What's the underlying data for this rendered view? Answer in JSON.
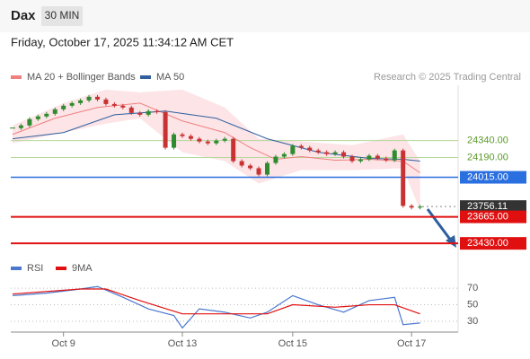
{
  "header": {
    "title": "Dax",
    "timeframe": "30 MIN",
    "timestamp": "Friday, October 17, 2025 11:34:12 AM CET"
  },
  "chart_data": {
    "type": "candlestick",
    "legend": [
      {
        "name": "MA 20 + Bollinger Bands",
        "color": "#f08080"
      },
      {
        "name": "MA 50",
        "color": "#2f5f9e"
      }
    ],
    "credit": "Research © 2025 Trading Central",
    "ylim": [
      23320,
      24830
    ],
    "closes": [
      24451,
      24474,
      24530,
      24554,
      24577,
      24617,
      24649,
      24672,
      24696,
      24728,
      24704,
      24664,
      24649,
      24633,
      24585,
      24569,
      24601,
      24593,
      24277,
      24395,
      24380,
      24356,
      24332,
      24316,
      24340,
      24356,
      24158,
      24119,
      24095,
      24039,
      24142,
      24198,
      24221,
      24293,
      24277,
      24253,
      24237,
      24221,
      24237,
      24198,
      24158,
      24174,
      24206,
      24182,
      24166,
      24253,
      23762,
      23747,
      23756
    ],
    "ma20": {
      "x": [
        0,
        5,
        10,
        15,
        20,
        25,
        28,
        31,
        34,
        38,
        42,
        46,
        48
      ],
      "values": [
        24395,
        24538,
        24633,
        24672,
        24514,
        24411,
        24277,
        24174,
        24198,
        24166,
        24174,
        24158,
        24055
      ]
    },
    "ma50": {
      "x": [
        0,
        6,
        12,
        18,
        24,
        30,
        36,
        42,
        46,
        48
      ],
      "values": [
        24356,
        24411,
        24569,
        24601,
        24538,
        24356,
        24237,
        24182,
        24174,
        24158
      ]
    },
    "bands": {
      "x": [
        0,
        6,
        11,
        15,
        20,
        25,
        29,
        34,
        40,
        46,
        48
      ],
      "upper": [
        24474,
        24672,
        24791,
        24767,
        24791,
        24633,
        24356,
        24332,
        24300,
        24395,
        24158
      ],
      "lower": [
        24316,
        24411,
        24490,
        24538,
        24237,
        24158,
        23960,
        24079,
        24079,
        24095,
        23723
      ]
    },
    "levels": [
      {
        "value": 24340,
        "label": "24340.00",
        "color": "#b5d89a",
        "style": "plain"
      },
      {
        "value": 24190,
        "label": "24190.00",
        "color": "#b5d89a",
        "style": "plain"
      },
      {
        "value": 24015,
        "label": "24015.00",
        "color": "#2a6fe0",
        "style": "box"
      },
      {
        "value": 23756.11,
        "label": "23756.11",
        "color": "#333333",
        "style": "current"
      },
      {
        "value": 23665,
        "label": "23665.00",
        "color": "#e01010",
        "style": "box"
      },
      {
        "value": 23430,
        "label": "23430.00",
        "color": "#e01010",
        "style": "box"
      }
    ],
    "xticks": [
      {
        "value": 6,
        "label": "Oct 9"
      },
      {
        "value": 20,
        "label": "Oct 13"
      },
      {
        "value": 33,
        "label": "Oct 15"
      },
      {
        "value": 47,
        "label": "Oct 17"
      }
    ],
    "rsi": {
      "legend": [
        {
          "name": "RSI",
          "color": "#4a78d0"
        },
        {
          "name": "9MA",
          "color": "#e01010"
        }
      ],
      "ylim": [
        17,
        82
      ],
      "yticks": [
        70,
        50,
        30
      ],
      "x": [
        0,
        4,
        8,
        10,
        13,
        16,
        19,
        20,
        22,
        25,
        28,
        30,
        33,
        36,
        39,
        42,
        45,
        46,
        48
      ],
      "values": [
        61,
        64,
        69,
        72,
        59,
        45,
        37,
        22,
        45,
        41,
        34,
        41,
        61,
        50,
        41,
        55,
        59,
        26,
        28
      ],
      "ma_x": [
        0,
        8,
        11,
        15,
        20,
        25,
        30,
        33,
        38,
        42,
        45,
        48
      ],
      "ma_values": [
        63,
        69,
        69,
        55,
        39,
        39,
        39,
        50,
        47,
        50,
        50,
        39
      ]
    }
  }
}
